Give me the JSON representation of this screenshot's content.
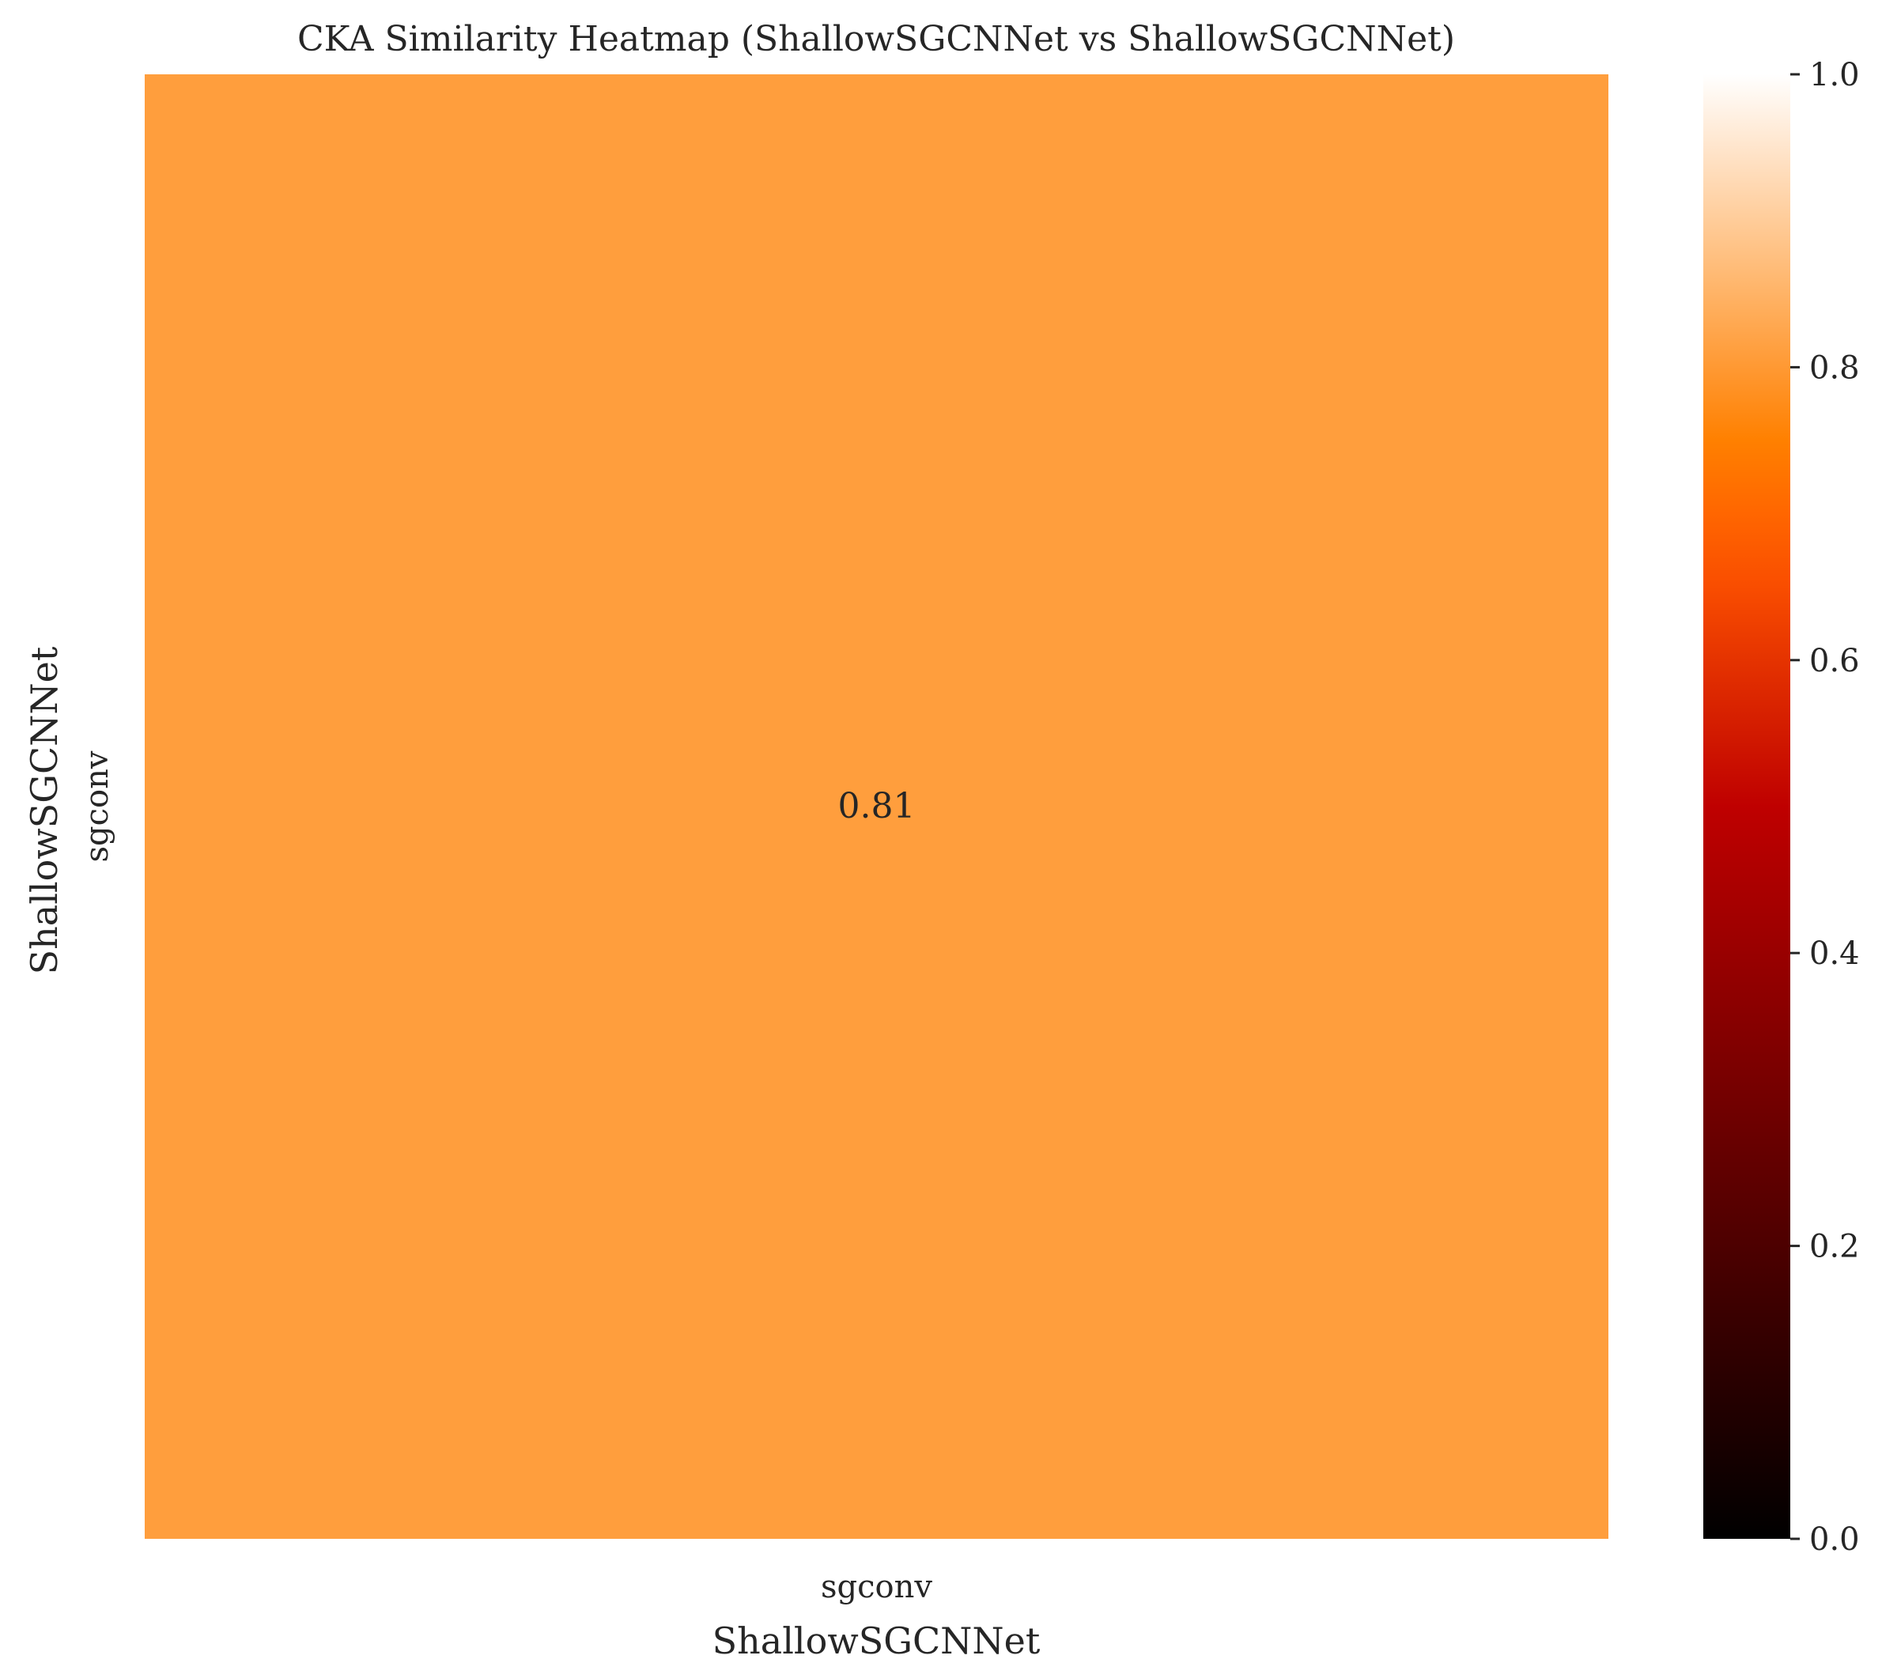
{
  "chart_data": {
    "type": "heatmap",
    "title": "CKA Similarity Heatmap (ShallowSGCNNet vs ShallowSGCNNet)",
    "xlabel": "ShallowSGCNNet",
    "ylabel": "ShallowSGCNNet",
    "x_categories": [
      "sgconv"
    ],
    "y_categories": [
      "sgconv"
    ],
    "values": [
      [
        0.81
      ]
    ],
    "cell_labels": [
      [
        "0.81"
      ]
    ],
    "colorbar": {
      "colormap": "gist_heat",
      "range": [
        0.0,
        1.0
      ],
      "ticks": [
        0.0,
        0.2,
        0.4,
        0.6,
        0.8,
        1.0
      ],
      "tick_labels": [
        "0.0",
        "0.2",
        "0.4",
        "0.6",
        "0.8",
        "1.0"
      ]
    },
    "grid": false
  }
}
